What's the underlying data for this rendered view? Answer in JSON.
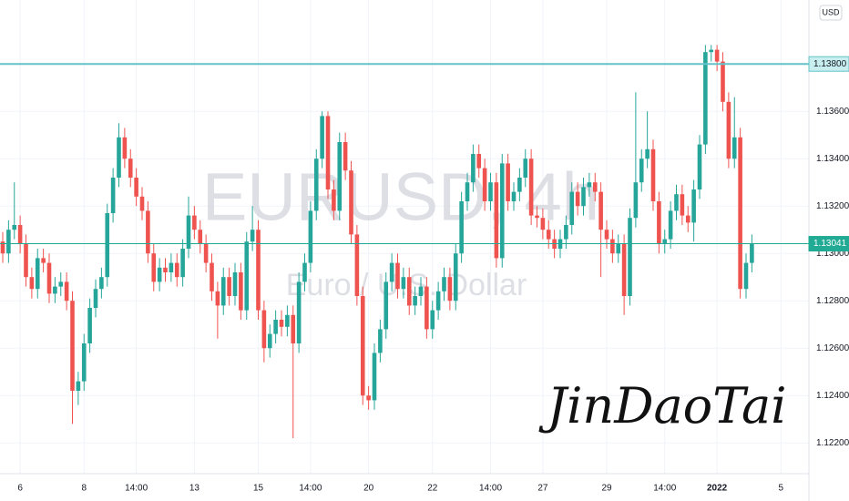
{
  "chart_data": {
    "type": "candlestick",
    "watermark": {
      "symbol": "EURUSD, 4h",
      "description": "Euro / U.S. Dollar"
    },
    "signature": "JinDaoTai",
    "currency": "USD",
    "up_color": "#26a69a",
    "down_color": "#ef5350",
    "grid": true,
    "ylim": [
      1.1207,
      1.1407
    ],
    "yticks": [
      {
        "value": 1.122,
        "label": "1.12200"
      },
      {
        "value": 1.124,
        "label": "1.12400"
      },
      {
        "value": 1.126,
        "label": "1.12600"
      },
      {
        "value": 1.128,
        "label": "1.12800"
      },
      {
        "value": 1.13,
        "label": "1.13000"
      },
      {
        "value": 1.132,
        "label": "1.13200"
      },
      {
        "value": 1.134,
        "label": "1.13400"
      },
      {
        "value": 1.136,
        "label": "1.13600"
      }
    ],
    "price_lines": [
      {
        "value": 1.138,
        "label": "1.13800",
        "color": "#63c3c8"
      },
      {
        "value": 1.13041,
        "label": "1.13041",
        "color": "#22ab94"
      }
    ],
    "categories": [
      null,
      null,
      null,
      "6",
      null,
      null,
      null,
      null,
      null,
      null,
      null,
      null,
      null,
      null,
      "8",
      null,
      null,
      null,
      null,
      null,
      null,
      null,
      null,
      "14:00",
      null,
      null,
      null,
      null,
      null,
      null,
      null,
      null,
      null,
      "13",
      null,
      null,
      null,
      null,
      null,
      null,
      null,
      null,
      null,
      null,
      "15",
      null,
      null,
      null,
      null,
      null,
      null,
      null,
      null,
      "14:00",
      null,
      null,
      null,
      null,
      null,
      null,
      null,
      null,
      null,
      "20",
      null,
      null,
      null,
      null,
      null,
      null,
      null,
      null,
      null,
      null,
      "22",
      null,
      null,
      null,
      null,
      null,
      null,
      null,
      null,
      null,
      "14:00",
      null,
      null,
      null,
      null,
      null,
      null,
      null,
      null,
      "27",
      null,
      null,
      null,
      null,
      null,
      null,
      null,
      null,
      null,
      null,
      "29",
      null,
      null,
      null,
      null,
      null,
      null,
      null,
      null,
      null,
      "14:00",
      null,
      null,
      null,
      null,
      null,
      null,
      null,
      null,
      "2022",
      null,
      null,
      null,
      null,
      null,
      null,
      null,
      null,
      null,
      null,
      "5"
    ],
    "open": [
      1.1305,
      1.13,
      1.131,
      1.1312,
      1.1304,
      1.129,
      1.1285,
      1.1298,
      1.1296,
      1.1283,
      1.1286,
      1.1288,
      1.128,
      1.1242,
      1.1246,
      1.1262,
      1.1277,
      1.1285,
      1.129,
      1.1317,
      1.1332,
      1.1349,
      1.134,
      1.1332,
      1.1324,
      1.1318,
      1.13,
      1.1288,
      1.1294,
      1.1292,
      1.1296,
      1.129,
      1.1302,
      1.1316,
      1.131,
      1.1304,
      1.1296,
      1.1284,
      1.1278,
      1.129,
      1.1282,
      1.1292,
      1.1276,
      1.1305,
      1.131,
      1.1276,
      1.126,
      1.1266,
      1.1272,
      1.1269,
      1.1274,
      1.1262,
      1.1288,
      1.1296,
      1.1318,
      1.134,
      1.1358,
      1.1327,
      1.1318,
      1.1347,
      1.1335,
      1.1308,
      1.1282,
      1.124,
      1.1238,
      1.1258,
      1.1268,
      1.1288,
      1.1296,
      1.1285,
      1.129,
      1.1278,
      1.1282,
      1.1286,
      1.1268,
      1.1276,
      1.1284,
      1.129,
      1.128,
      1.13,
      1.1322,
      1.133,
      1.1342,
      1.1336,
      1.1322,
      1.133,
      1.1298,
      1.1338,
      1.1322,
      1.1326,
      1.1332,
      1.134,
      1.1316,
      1.1315,
      1.131,
      1.1306,
      1.1302,
      1.1306,
      1.1312,
      1.1326,
      1.132,
      1.1328,
      1.133,
      1.1326,
      1.131,
      1.1306,
      1.13,
      1.1304,
      1.1282,
      1.1315,
      1.133,
      1.134,
      1.1344,
      1.1322,
      1.1304,
      1.1306,
      1.1318,
      1.1325,
      1.1316,
      1.1313,
      1.1327,
      1.1346,
      1.1385,
      1.1386,
      1.1381,
      1.1364,
      1.134,
      1.1349,
      1.1285,
      1.1296,
      null,
      null,
      null,
      null,
      null
    ],
    "high": [
      1.1309,
      1.1314,
      1.133,
      1.1316,
      1.1308,
      1.1294,
      1.1302,
      1.1302,
      1.13,
      1.129,
      1.1292,
      1.1292,
      1.1284,
      1.125,
      1.1266,
      1.1281,
      1.1289,
      1.1294,
      1.1321,
      1.1336,
      1.1355,
      1.1353,
      1.1344,
      1.1336,
      1.1328,
      1.1322,
      1.1304,
      1.1298,
      1.1298,
      1.13,
      1.13,
      1.1306,
      1.1324,
      1.132,
      1.1314,
      1.1308,
      1.13,
      1.1288,
      1.1294,
      1.1294,
      1.1296,
      1.1296,
      1.1309,
      1.132,
      1.1314,
      1.128,
      1.127,
      1.1276,
      1.1276,
      1.1278,
      1.1278,
      1.1292,
      1.13,
      1.1322,
      1.1344,
      1.136,
      1.136,
      1.1331,
      1.1351,
      1.1351,
      1.1339,
      1.1312,
      1.1286,
      1.1244,
      1.1262,
      1.1272,
      1.1292,
      1.13,
      1.13,
      1.1294,
      1.1294,
      1.1286,
      1.129,
      1.129,
      1.128,
      1.1288,
      1.1294,
      1.1294,
      1.1304,
      1.1326,
      1.1334,
      1.1346,
      1.1346,
      1.134,
      1.1334,
      1.1334,
      1.1342,
      1.1342,
      1.133,
      1.1336,
      1.1344,
      1.1344,
      1.132,
      1.1319,
      1.1314,
      1.131,
      1.131,
      1.1316,
      1.133,
      1.133,
      1.1332,
      1.1334,
      1.1334,
      1.133,
      1.1314,
      1.131,
      1.1308,
      1.1308,
      1.1319,
      1.1368,
      1.1344,
      1.136,
      1.1348,
      1.1326,
      1.131,
      1.1322,
      1.1329,
      1.1329,
      1.132,
      1.1331,
      1.135,
      1.1388,
      1.1388,
      1.1388,
      1.1385,
      1.1368,
      1.1366,
      1.1353,
      1.13,
      1.1308,
      null,
      null,
      null,
      null,
      null
    ],
    "low": [
      1.1296,
      1.1296,
      1.1306,
      1.13,
      1.1286,
      1.1281,
      1.1281,
      1.1292,
      1.1279,
      1.1279,
      1.1282,
      1.1276,
      1.1228,
      1.1236,
      1.1242,
      1.1258,
      1.1273,
      1.1281,
      1.1286,
      1.1313,
      1.1328,
      1.1336,
      1.1328,
      1.132,
      1.1314,
      1.1296,
      1.1284,
      1.1284,
      1.1288,
      1.1288,
      1.1286,
      1.1286,
      1.1298,
      1.1306,
      1.13,
      1.1292,
      1.128,
      1.1264,
      1.1274,
      1.1278,
      1.1278,
      1.1272,
      1.1272,
      1.1301,
      1.1272,
      1.1254,
      1.1256,
      1.1262,
      1.1265,
      1.1265,
      1.1222,
      1.1258,
      1.1284,
      1.1292,
      1.1314,
      1.1336,
      1.1323,
      1.1314,
      1.1314,
      1.1331,
      1.1304,
      1.1278,
      1.1236,
      1.1234,
      1.1234,
      1.1254,
      1.1264,
      1.1284,
      1.1281,
      1.1281,
      1.1274,
      1.1274,
      1.1278,
      1.1264,
      1.1264,
      1.1272,
      1.128,
      1.1276,
      1.1276,
      1.1296,
      1.1318,
      1.1326,
      1.1332,
      1.1318,
      1.1318,
      1.1294,
      1.1294,
      1.1318,
      1.1318,
      1.1322,
      1.1328,
      1.1312,
      1.1311,
      1.1306,
      1.1302,
      1.1298,
      1.1298,
      1.1302,
      1.1308,
      1.1316,
      1.1316,
      1.1324,
      1.1322,
      1.129,
      1.1302,
      1.1296,
      1.1296,
      1.1274,
      1.1278,
      1.1311,
      1.1326,
      1.1336,
      1.1318,
      1.13,
      1.13,
      1.1302,
      1.1314,
      1.1312,
      1.1309,
      1.1305,
      1.1323,
      1.1342,
      1.1381,
      1.1377,
      1.136,
      1.1336,
      1.1336,
      1.1281,
      1.1281,
      1.1292,
      null,
      null,
      null,
      null,
      null
    ],
    "close": [
      1.13,
      1.131,
      1.1312,
      1.1304,
      1.129,
      1.1285,
      1.1298,
      1.1296,
      1.1283,
      1.1286,
      1.1288,
      1.128,
      1.1242,
      1.1246,
      1.1262,
      1.1277,
      1.1285,
      1.129,
      1.1317,
      1.1332,
      1.1349,
      1.134,
      1.1332,
      1.1324,
      1.1318,
      1.13,
      1.1288,
      1.1294,
      1.1292,
      1.1296,
      1.129,
      1.1302,
      1.1316,
      1.131,
      1.1304,
      1.1296,
      1.1284,
      1.1278,
      1.129,
      1.1282,
      1.1292,
      1.1276,
      1.1305,
      1.131,
      1.1276,
      1.126,
      1.1266,
      1.1272,
      1.1269,
      1.1274,
      1.1262,
      1.1288,
      1.1296,
      1.1318,
      1.134,
      1.1358,
      1.1327,
      1.1318,
      1.1347,
      1.1335,
      1.1308,
      1.1282,
      1.124,
      1.1238,
      1.1258,
      1.1268,
      1.1288,
      1.1296,
      1.1285,
      1.129,
      1.1278,
      1.1282,
      1.1286,
      1.1268,
      1.1276,
      1.1284,
      1.129,
      1.128,
      1.13,
      1.1322,
      1.133,
      1.1342,
      1.1336,
      1.1322,
      1.133,
      1.1298,
      1.1338,
      1.1322,
      1.1326,
      1.1332,
      1.134,
      1.1316,
      1.1315,
      1.131,
      1.1306,
      1.1302,
      1.1306,
      1.1312,
      1.1326,
      1.132,
      1.1328,
      1.133,
      1.1326,
      1.131,
      1.1306,
      1.13,
      1.1304,
      1.1282,
      1.1315,
      1.133,
      1.134,
      1.1344,
      1.1322,
      1.1304,
      1.1306,
      1.1318,
      1.1325,
      1.1316,
      1.1313,
      1.1327,
      1.1346,
      1.1385,
      1.1386,
      1.1381,
      1.1364,
      1.134,
      1.1349,
      1.1285,
      1.1296,
      1.13041,
      null,
      null,
      null,
      null,
      null
    ]
  }
}
